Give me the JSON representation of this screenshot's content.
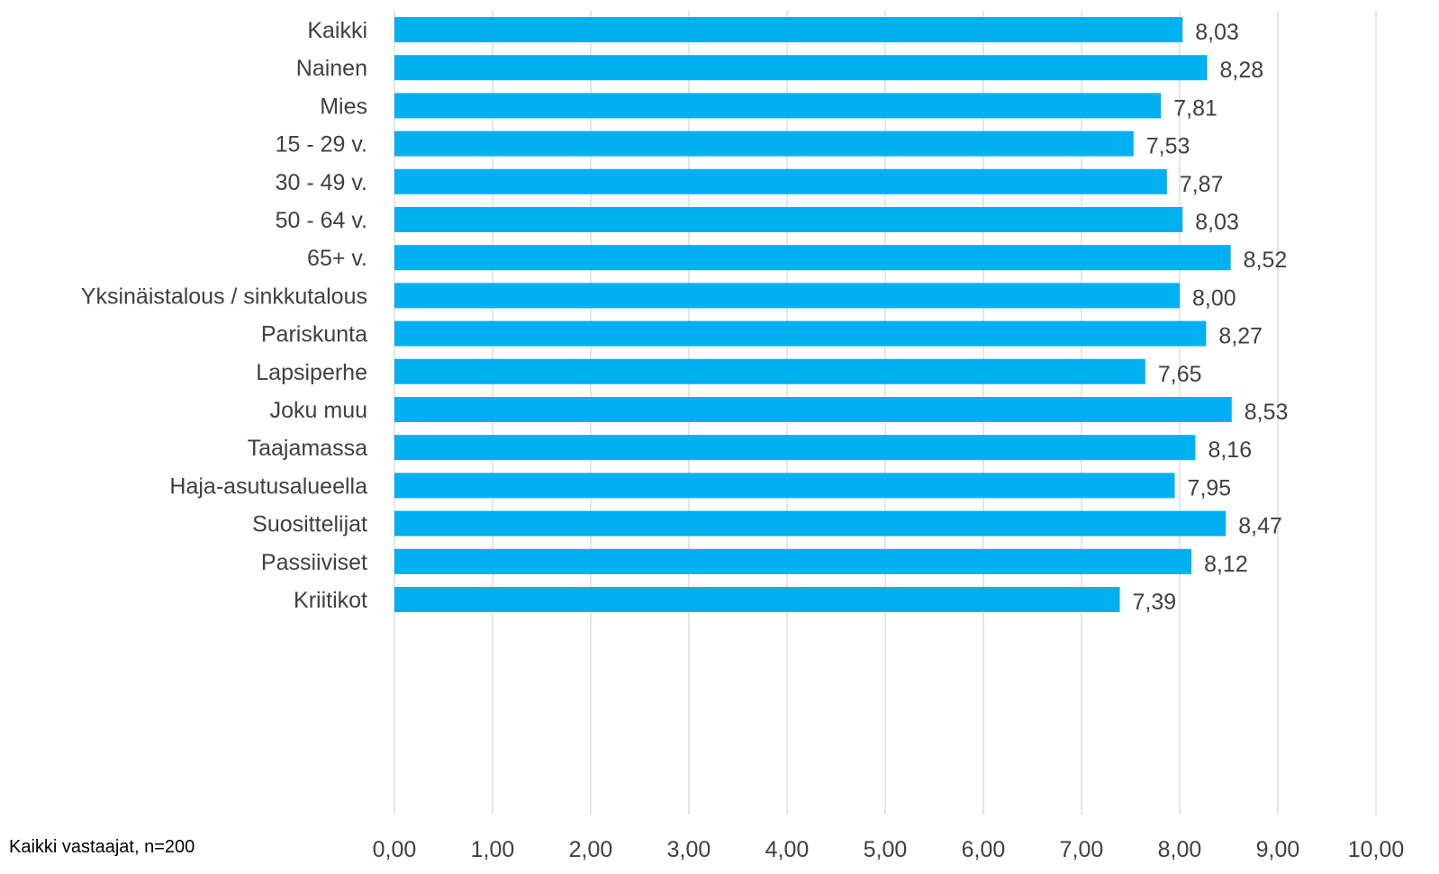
{
  "footnote": "Kaikki vastaajat, n=200",
  "colors": {
    "bar": "#00B0F0",
    "grid": "#D9D9D9",
    "text": "#404040"
  },
  "chart_data": {
    "type": "bar",
    "orientation": "horizontal",
    "categories": [
      "Kaikki",
      "Nainen",
      "Mies",
      "15 - 29 v.",
      "30 - 49 v.",
      "50 - 64 v.",
      "65+ v.",
      "Yksinäistalous / sinkkutalous",
      "Pariskunta",
      "Lapsiperhe",
      "Joku muu",
      "Taajamassa",
      "Haja-asutusalueella",
      "Suosittelijat",
      "Passiiviset",
      "Kriitikot"
    ],
    "groups": [
      [
        0
      ],
      [
        1,
        2
      ],
      [
        3,
        4,
        5,
        6
      ],
      [
        7,
        8,
        9,
        10
      ],
      [
        11,
        12
      ],
      [
        13,
        14,
        15
      ]
    ],
    "values": [
      8.03,
      8.28,
      7.81,
      7.53,
      7.87,
      8.03,
      8.52,
      8.0,
      8.27,
      7.65,
      8.53,
      8.16,
      7.95,
      8.47,
      8.12,
      7.39
    ],
    "value_labels": [
      "8,03",
      "8,28",
      "7,81",
      "7,53",
      "7,87",
      "8,03",
      "8,52",
      "8,00",
      "8,27",
      "7,65",
      "8,53",
      "8,16",
      "7,95",
      "8,47",
      "8,12",
      "7,39"
    ],
    "xlim": [
      0,
      10
    ],
    "ticks": [
      0,
      1,
      2,
      3,
      4,
      5,
      6,
      7,
      8,
      9,
      10
    ],
    "tick_labels": [
      "0,00",
      "1,00",
      "2,00",
      "3,00",
      "4,00",
      "5,00",
      "6,00",
      "7,00",
      "8,00",
      "9,00",
      "10,00"
    ],
    "grid": true,
    "legend": "none"
  }
}
